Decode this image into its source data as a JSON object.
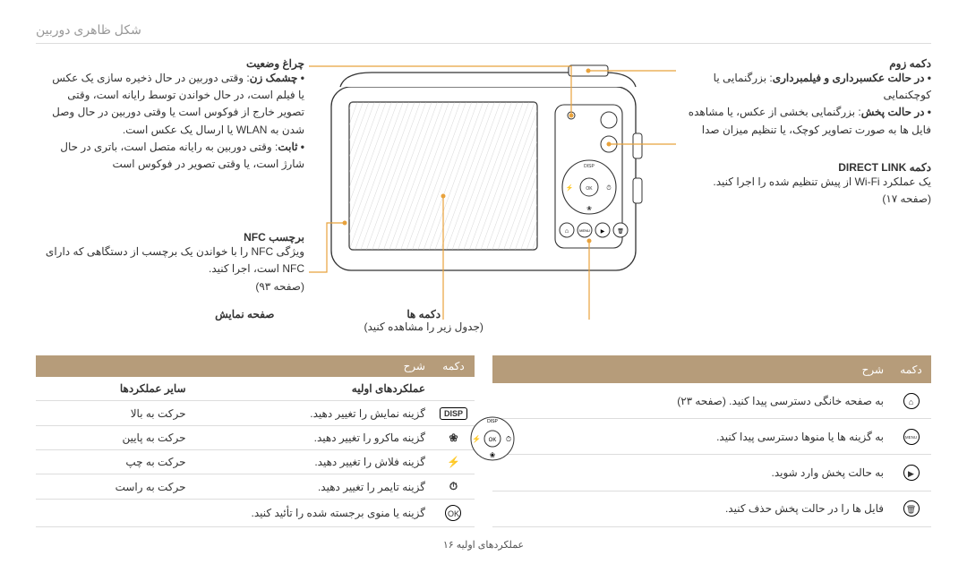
{
  "page": {
    "header": "شکل ظاهری دوربین",
    "footer": "عملکردهای اولیه  ۱۶"
  },
  "right": {
    "zoom": {
      "title": "دکمه زوم",
      "bullet1_bold": "• در حالت عکسبرداری و فیلمبرداری",
      "bullet1_text": ": بزرگنمایی یا کوچکنمایی",
      "bullet2_bold": "• در حالت پخش",
      "bullet2_text": ": بزرگنمایی بخشی از عکس، یا مشاهده فایل ها به صورت تصاویر کوچک، یا تنظیم میزان صدا"
    },
    "direct": {
      "title": "دکمه DIRECT LINK",
      "text": "یک عملکرد Wi-Fi از پیش تنظیم شده را اجرا کنید.",
      "page": "(صفحه ۱۷)"
    }
  },
  "left": {
    "status_light": {
      "title": "چراغ وضعیت",
      "blink_bold": "• چشمک زن",
      "blink_text": ": وقتی دوربین در حال ذخیره سازی یک عکس یا فیلم است، در حال خواندن توسط رایانه است، وقتی تصویر خارج از فوکوس است یا وقتی دوربین در حال وصل شدن به WLAN یا ارسال یک عکس است.",
      "steady_bold": "• ثابت",
      "steady_text": ": وقتی دوربین به رایانه متصل است، باتری در حال شارژ است، یا وقتی تصویر در فوکوس است"
    },
    "nfc": {
      "title": "برچسب NFC",
      "text": "ویژگی NFC را با خواندن یک برچسب از دستگاهی که دارای NFC است، اجرا کنید.",
      "page": "(صفحه ۹۳)"
    }
  },
  "bottom_labels": {
    "display": {
      "title": "صفحه نمایش",
      "text": ""
    },
    "buttons": {
      "title": "دکمه ها",
      "text": "(جدول زیر را مشاهده کنید)"
    }
  },
  "table_right": {
    "h_button": "دکمه",
    "h_desc": "شرح",
    "rows": [
      {
        "icon": "home",
        "desc": "به صفحه خانگی دسترسی پیدا کنید. (صفحه ۲۳)"
      },
      {
        "icon": "menu",
        "desc": "به گزینه ها یا منوها دسترسی پیدا کنید."
      },
      {
        "icon": "play",
        "desc": "به حالت پخش وارد شوید."
      },
      {
        "icon": "trash",
        "desc": "فایل ها را در حالت پخش حذف کنید."
      }
    ]
  },
  "table_left": {
    "h_button": "دکمه",
    "h_desc": "شرح",
    "sub1": "عملکردهای اولیه",
    "sub2": "سایر عملکردها",
    "rows": [
      {
        "icon": "DISP",
        "d1": "گزینه نمایش را تغییر دهید.",
        "d2": "حرکت به بالا"
      },
      {
        "icon": "macro",
        "d1": "گزینه ماکرو را تغییر دهید.",
        "d2": "حرکت به پایین"
      },
      {
        "icon": "flash",
        "d1": "گزینه فلاش را تغییر دهید.",
        "d2": "حرکت به چپ"
      },
      {
        "icon": "timer",
        "d1": "گزینه تایمر را تغییر دهید.",
        "d2": "حرکت به راست"
      }
    ],
    "ok_row": {
      "icon": "OK",
      "desc": "گزینه یا منوی برجسته شده را تأئید کنید."
    }
  },
  "icons": {
    "home": "⌂",
    "menu": "MENU",
    "play": "▶",
    "trash": "🗑",
    "DISP": "DISP",
    "macro": "❀",
    "flash": "⚡",
    "timer": "⏱",
    "OK": "OK"
  },
  "colors": {
    "leader": "#e8a23c",
    "table_header": "#b69c7a"
  }
}
